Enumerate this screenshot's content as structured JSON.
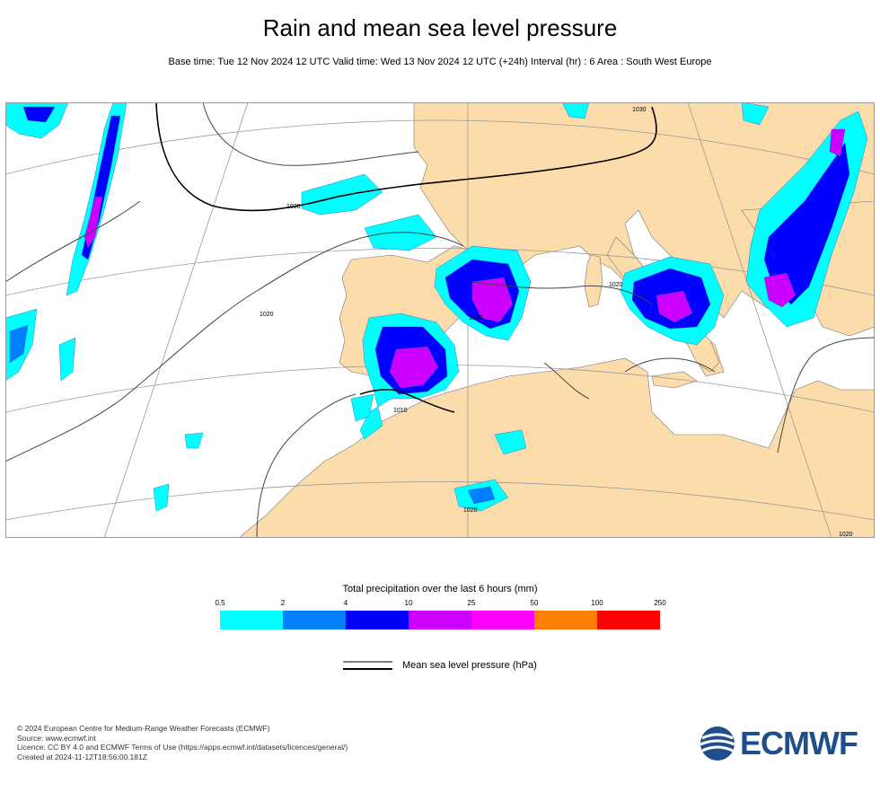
{
  "title": "Rain and mean sea level pressure",
  "subtitle": "Base time: Tue 12 Nov 2024 12 UTC Valid time: Wed 13 Nov 2024 12 UTC (+24h) Interval (hr) : 6 Area : South West Europe",
  "map": {
    "isobar_labels": [
      "1030",
      "1030",
      "1020",
      "1020",
      "1020",
      "1020",
      "1010",
      "1020"
    ],
    "land_color": "#fcdcaa",
    "sea_color": "#ffffff"
  },
  "legend": {
    "title": "Total precipitation over the last 6 hours (mm)",
    "ticks": [
      "0.5",
      "2",
      "4",
      "10",
      "25",
      "50",
      "100",
      "250"
    ],
    "colors": [
      "#00ffff",
      "#0080ff",
      "#0000ff",
      "#cc00ff",
      "#ff00ff",
      "#ff8000",
      "#ff0000"
    ]
  },
  "pressure_legend": {
    "label": "Mean sea level pressure (hPa)"
  },
  "footer": {
    "line1": "© 2024 European Centre for Medium-Range Weather Forecasts (ECMWF)",
    "line2": "Source: www.ecmwf.int",
    "line3": "Licence: CC BY 4.0 and ECMWF Terms of Use (https://apps.ecmwf.int/datasets/licences/general/)",
    "line4": "Created at 2024-11-12T18:56:00.181Z"
  },
  "logo": {
    "text": "ECMWF",
    "color": "#1f4e8c"
  }
}
